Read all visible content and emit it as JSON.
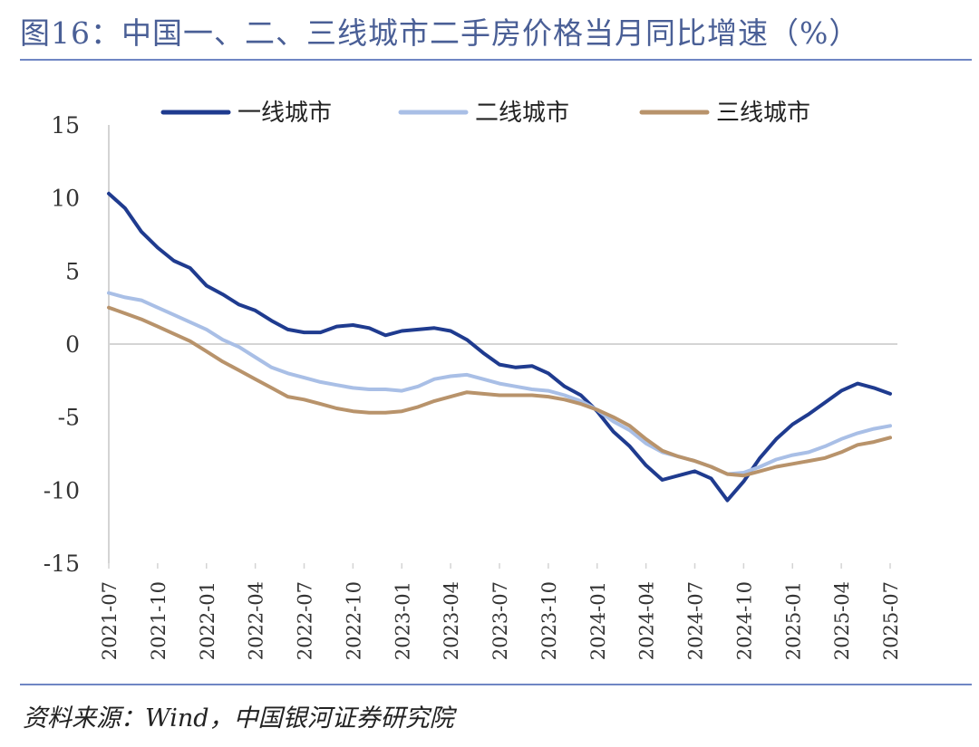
{
  "page": {
    "title": "图16：中国一、二、三线城市二手房价格当月同比增速（%）",
    "source": "资料来源：Wind，中国银河证券研究院"
  },
  "chart_data": {
    "type": "line",
    "title": "图16：中国一、二、三线城市二手房价格当月同比增速（%）",
    "xlabel": "",
    "ylabel": "",
    "ylim": [
      -15,
      15
    ],
    "yticks": [
      "15",
      "10",
      "5",
      "0",
      "-5",
      "-10",
      "-15"
    ],
    "ytick_values": [
      15,
      10,
      5,
      0,
      -5,
      -10,
      -15
    ],
    "xtick_labels": [
      "2021-07",
      "2021-10",
      "2022-01",
      "2022-04",
      "2022-07",
      "2022-10",
      "2023-01",
      "2023-04",
      "2023-07",
      "2023-10",
      "2024-01",
      "2024-04",
      "2024-07",
      "2024-10",
      "2025-01",
      "2025-04",
      "2025-07"
    ],
    "x": [
      "2021-07",
      "2021-08",
      "2021-09",
      "2021-10",
      "2021-11",
      "2021-12",
      "2022-01",
      "2022-02",
      "2022-03",
      "2022-04",
      "2022-05",
      "2022-06",
      "2022-07",
      "2022-08",
      "2022-09",
      "2022-10",
      "2022-11",
      "2022-12",
      "2023-01",
      "2023-02",
      "2023-03",
      "2023-04",
      "2023-05",
      "2023-06",
      "2023-07",
      "2023-08",
      "2023-09",
      "2023-10",
      "2023-11",
      "2023-12",
      "2024-01",
      "2024-02",
      "2024-03",
      "2024-04",
      "2024-05",
      "2024-06",
      "2024-07",
      "2024-08",
      "2024-09",
      "2024-10",
      "2024-11",
      "2024-12",
      "2025-01",
      "2025-02",
      "2025-03",
      "2025-04",
      "2025-05",
      "2025-06",
      "2025-07"
    ],
    "legend_position": "top",
    "grid": false,
    "zero_line": true,
    "series": [
      {
        "name": "一线城市",
        "color": "#1f3b8f",
        "values": [
          10.3,
          9.3,
          7.7,
          6.6,
          5.7,
          5.2,
          4.0,
          3.4,
          2.7,
          2.3,
          1.6,
          1.0,
          0.8,
          0.8,
          1.2,
          1.3,
          1.1,
          0.6,
          0.9,
          1.0,
          1.1,
          0.9,
          0.3,
          -0.6,
          -1.4,
          -1.6,
          -1.5,
          -2.0,
          -2.9,
          -3.5,
          -4.6,
          -6.0,
          -7.0,
          -8.3,
          -9.3,
          -9.0,
          -8.7,
          -9.2,
          -10.7,
          -9.4,
          -7.8,
          -6.5,
          -5.5,
          -4.8,
          -4.0,
          -3.2,
          -2.7,
          -3.0,
          -3.4
        ]
      },
      {
        "name": "二线城市",
        "color": "#a9bfe6",
        "values": [
          3.5,
          3.2,
          3.0,
          2.5,
          2.0,
          1.5,
          1.0,
          0.3,
          -0.2,
          -0.9,
          -1.6,
          -2.0,
          -2.3,
          -2.6,
          -2.8,
          -3.0,
          -3.1,
          -3.1,
          -3.2,
          -2.9,
          -2.4,
          -2.2,
          -2.1,
          -2.4,
          -2.7,
          -2.9,
          -3.1,
          -3.2,
          -3.5,
          -3.9,
          -4.5,
          -5.3,
          -5.9,
          -6.8,
          -7.4,
          -7.7,
          -8.0,
          -8.4,
          -8.9,
          -8.8,
          -8.4,
          -7.9,
          -7.6,
          -7.4,
          -7.0,
          -6.5,
          -6.1,
          -5.8,
          -5.6
        ]
      },
      {
        "name": "三线城市",
        "color": "#b8936b",
        "values": [
          2.5,
          2.1,
          1.7,
          1.2,
          0.7,
          0.2,
          -0.5,
          -1.2,
          -1.8,
          -2.4,
          -3.0,
          -3.6,
          -3.8,
          -4.1,
          -4.4,
          -4.6,
          -4.7,
          -4.7,
          -4.6,
          -4.3,
          -3.9,
          -3.6,
          -3.3,
          -3.4,
          -3.5,
          -3.5,
          -3.5,
          -3.6,
          -3.8,
          -4.1,
          -4.5,
          -5.0,
          -5.6,
          -6.5,
          -7.3,
          -7.7,
          -8.0,
          -8.4,
          -8.9,
          -9.0,
          -8.7,
          -8.4,
          -8.2,
          -8.0,
          -7.8,
          -7.4,
          -6.9,
          -6.7,
          -6.4
        ]
      }
    ]
  }
}
